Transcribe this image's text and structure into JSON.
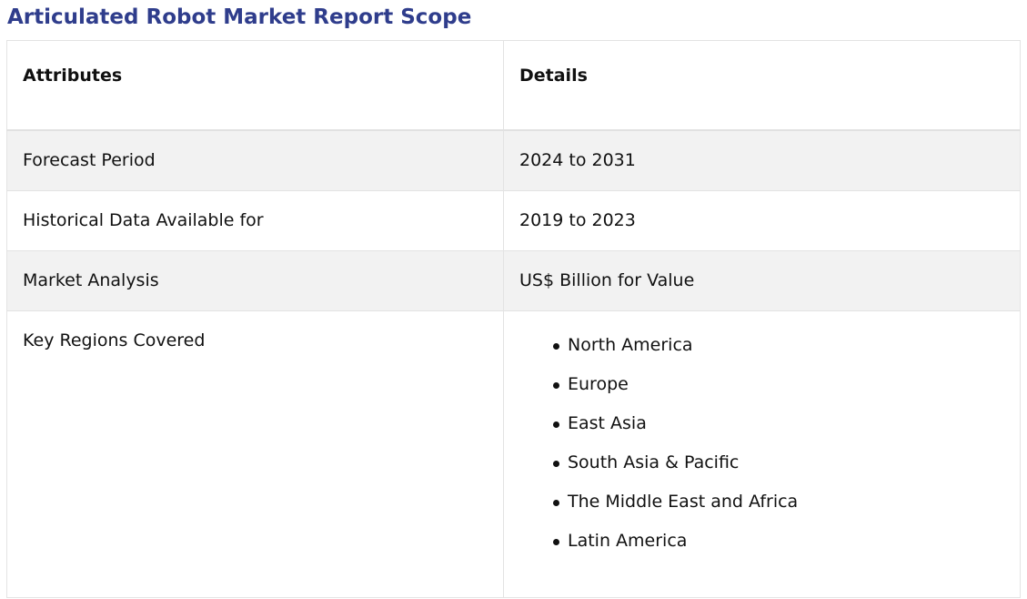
{
  "page": {
    "title": "Articulated Robot Market Report Scope"
  },
  "table": {
    "headers": {
      "attributes": "Attributes",
      "details": "Details"
    },
    "rows": [
      {
        "attribute": "Forecast Period",
        "detail": "2024 to 2031"
      },
      {
        "attribute": "Historical Data Available for",
        "detail": "2019 to 2023"
      },
      {
        "attribute": "Market Analysis",
        "detail": "US$ Billion for Value"
      }
    ],
    "regions": {
      "attribute": "Key Regions Covered",
      "items": [
        "North America",
        "Europe",
        "East Asia",
        "South Asia & Pacific",
        "The Middle East and Africa",
        "Latin America"
      ]
    }
  }
}
